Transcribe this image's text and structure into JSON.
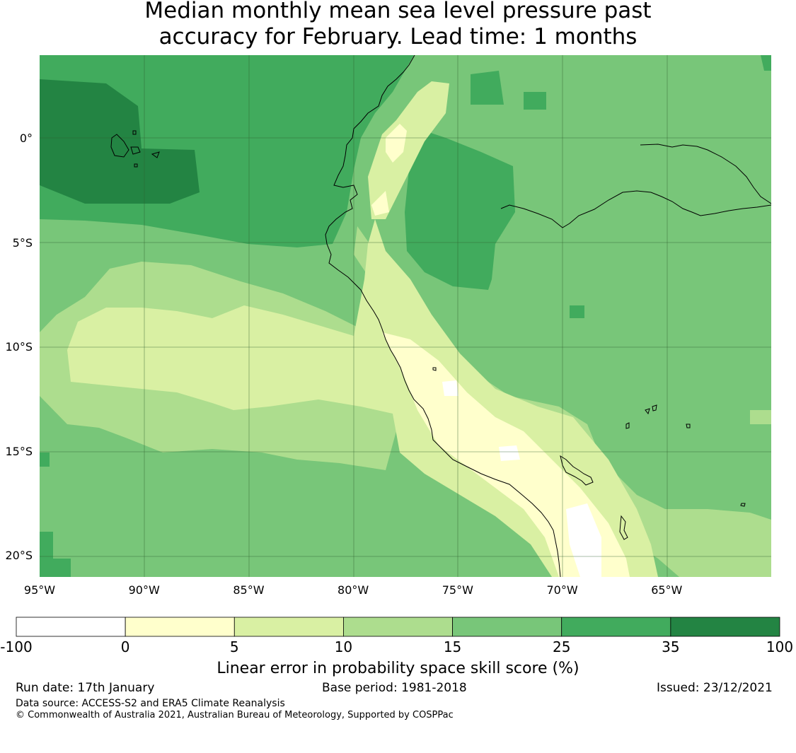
{
  "title_line1": "Median monthly mean sea level pressure past",
  "title_line2": "accuracy for February. Lead time: 1 months",
  "map": {
    "lon_range": [
      -95,
      -60
    ],
    "lat_range": [
      -21,
      4
    ],
    "lat_labels": [
      {
        "lat": 0,
        "text": "0°"
      },
      {
        "lat": -5,
        "text": "5°S"
      },
      {
        "lat": -10,
        "text": "10°S"
      },
      {
        "lat": -15,
        "text": "15°S"
      },
      {
        "lat": -20,
        "text": "20°S"
      }
    ],
    "lon_labels": [
      {
        "lon": -95,
        "text": "95°W"
      },
      {
        "lon": -90,
        "text": "90°W"
      },
      {
        "lon": -85,
        "text": "85°W"
      },
      {
        "lon": -80,
        "text": "80°W"
      },
      {
        "lon": -75,
        "text": "75°W"
      },
      {
        "lon": -70,
        "text": "70°W"
      },
      {
        "lon": -65,
        "text": "65°W"
      }
    ],
    "gridlines": true
  },
  "colorbar": {
    "bins": [
      {
        "from": -100,
        "to": 0,
        "color": "#ffffff"
      },
      {
        "from": 0,
        "to": 5,
        "color": "#ffffcc"
      },
      {
        "from": 5,
        "to": 10,
        "color": "#d9f0a3"
      },
      {
        "from": 10,
        "to": 15,
        "color": "#addd8e"
      },
      {
        "from": 15,
        "to": 25,
        "color": "#78c679"
      },
      {
        "from": 25,
        "to": 35,
        "color": "#41ab5d"
      },
      {
        "from": 35,
        "to": 100,
        "color": "#238443"
      }
    ],
    "tick_labels": [
      "-100",
      "0",
      "5",
      "10",
      "15",
      "25",
      "35",
      "100"
    ],
    "label": "Linear error in probability space skill score (%)"
  },
  "footer": {
    "run_date": "Run date: 17th January",
    "base_period": "Base period: 1981-2018",
    "issued": "Issued: 23/12/2021",
    "data_source": "Data source: ACCESS-S2 and ERA5 Climate Reanalysis",
    "copyright": "© Commonwealth of Australia 2021, Australian Bureau of Meteorology, Supported by COSPPac"
  }
}
